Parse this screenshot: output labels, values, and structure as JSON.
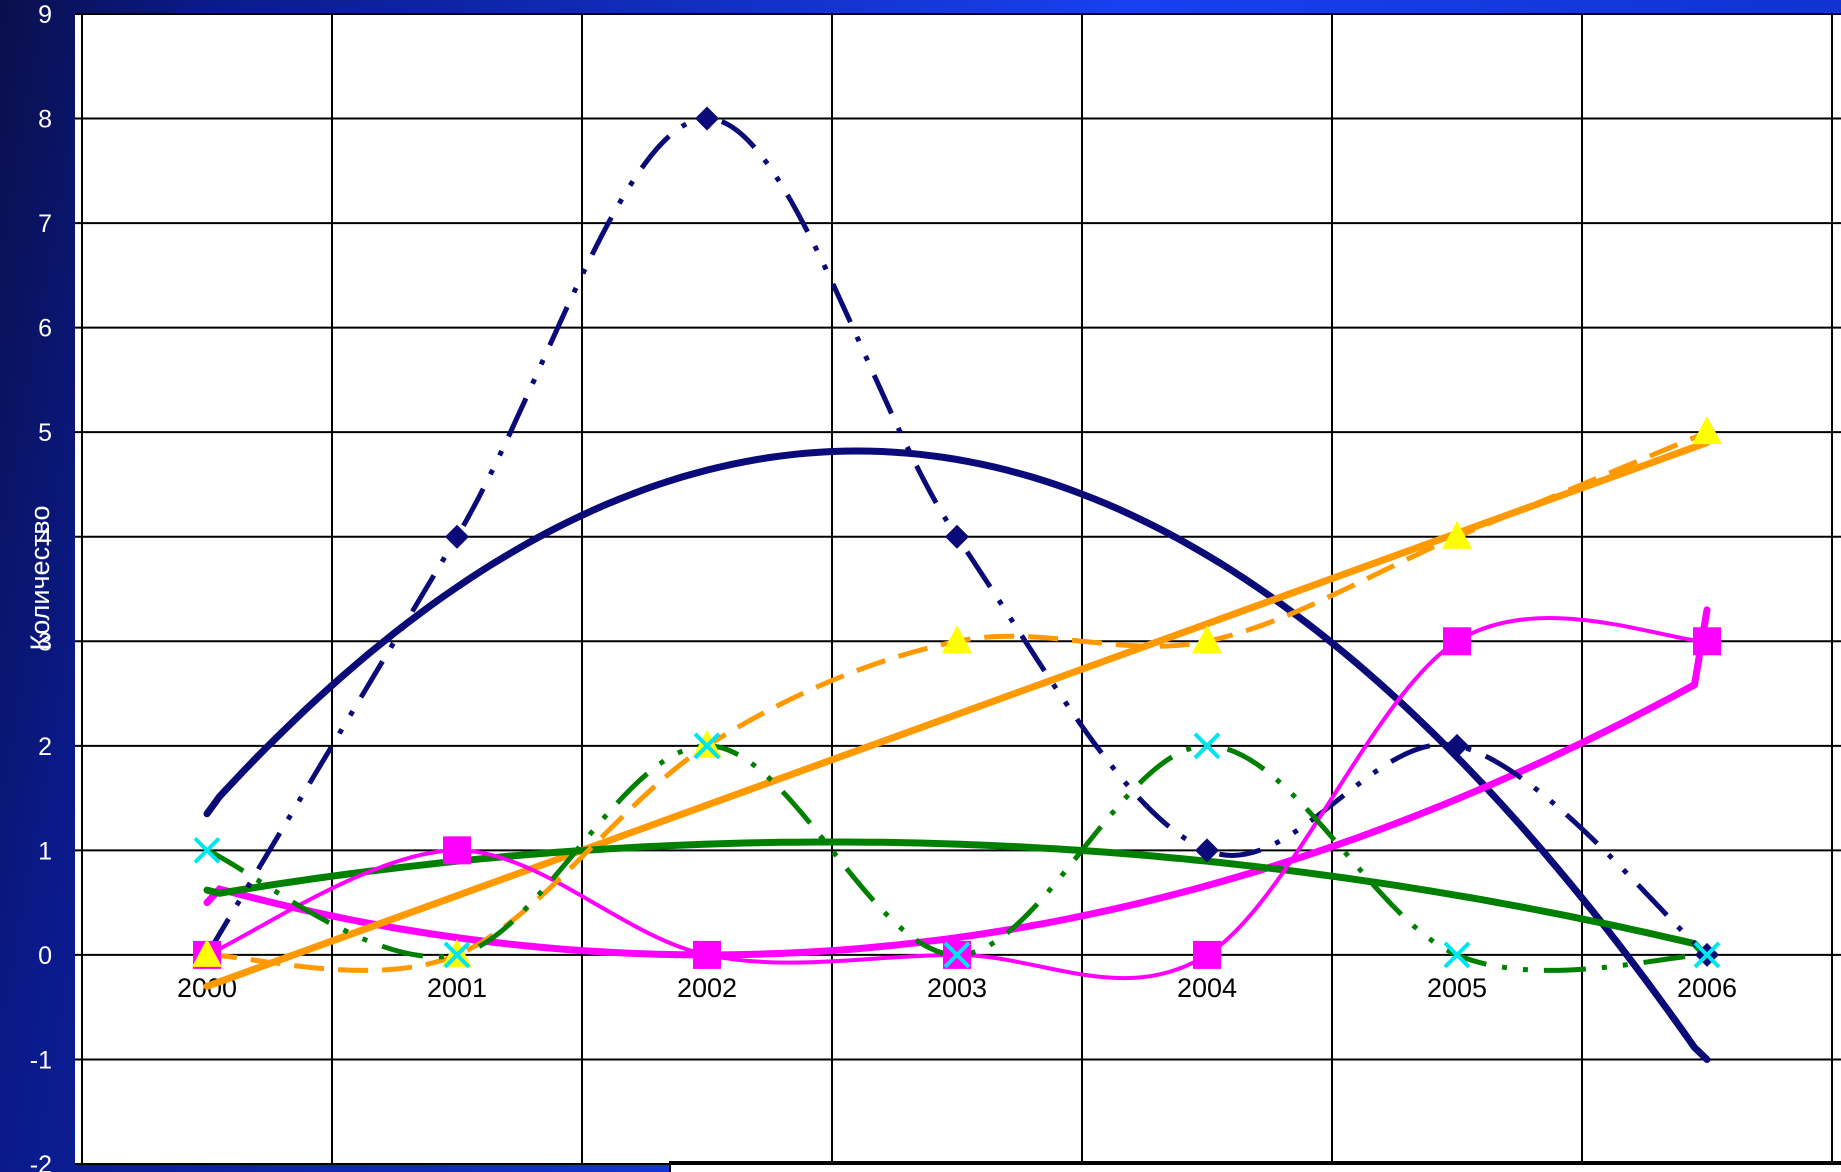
{
  "chart_data": {
    "type": "line",
    "ylabel": "Количество",
    "xlabel": "",
    "ylim": [
      -2,
      9
    ],
    "yticks": [
      -2,
      -1,
      0,
      1,
      2,
      3,
      4,
      5,
      6,
      7,
      8,
      9
    ],
    "x": [
      "2000",
      "2001",
      "2002",
      "2003",
      "2004",
      "2005",
      "2006"
    ],
    "grid": true,
    "series": [
      {
        "values": [
          0,
          4,
          8,
          4,
          1,
          2,
          0
        ],
        "color": "#0a0a78",
        "dash": "dashdotdot",
        "marker": "diamond"
      },
      {
        "values": [
          0,
          1,
          0,
          0,
          0,
          3,
          3
        ],
        "color": "#ff00ff",
        "dash": "solid",
        "marker": "square"
      },
      {
        "values": [
          0,
          0,
          2,
          3,
          3,
          4,
          5
        ],
        "color": "#ff9900",
        "dash": "dash",
        "marker": "triangle"
      },
      {
        "values": [
          1,
          0,
          2,
          0,
          2,
          0,
          0
        ],
        "color": "#008000",
        "dash": "dashdotdot",
        "marker": "x"
      }
    ],
    "trendlines": [
      {
        "of_series": 0,
        "kind": "polynomial-2",
        "color": "#0a0a78",
        "start": 1.35,
        "end": -1.0,
        "peak_x": 2002.6,
        "peak_y": 4.82
      },
      {
        "of_series": 1,
        "kind": "polynomial-2",
        "color": "#ff00ff",
        "start": 0.5,
        "end": 3.3,
        "min_x": 2002.0,
        "min_y": 0.0
      },
      {
        "of_series": 2,
        "kind": "linear",
        "color": "#ff9900",
        "start": -0.3,
        "end": 4.9
      },
      {
        "of_series": 3,
        "kind": "polynomial-2",
        "color": "#008000",
        "start": 0.62,
        "end": -0.02,
        "peak_x": 2002.5,
        "peak_y": 1.08
      }
    ],
    "colors": {
      "plot_background": "#ffffff",
      "grid": "#000000",
      "marker_x": "#00e5ee",
      "marker_triangle": "#ffff00"
    }
  }
}
